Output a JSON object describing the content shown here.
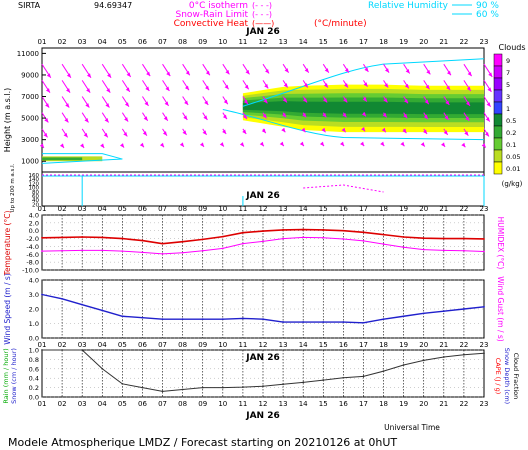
{
  "header": {
    "station": "SIRTA",
    "coord": "94.69347",
    "legend_left": [
      {
        "label": "0°C isotherm",
        "key": "(- - -)",
        "color": "#ff00ff"
      },
      {
        "label": "Snow-Rain Limit",
        "key": "(- - -)",
        "color": "#ff00ff"
      },
      {
        "label": "Convective Heat",
        "key": "(——)",
        "color": "#ff0000"
      },
      {
        "label": "(°C/minute)",
        "key": "",
        "color": "#ff0000"
      }
    ],
    "legend_right": {
      "label": "Relative Humidity",
      "v90": "90 %",
      "v60": "60 %",
      "color": "#00d8ff"
    }
  },
  "hours": [
    "01",
    "02",
    "03",
    "04",
    "05",
    "06",
    "07",
    "08",
    "09",
    "10",
    "11",
    "12",
    "13",
    "14",
    "15",
    "16",
    "17",
    "18",
    "19",
    "20",
    "21",
    "22",
    "23"
  ],
  "date_label": "JAN 26",
  "colorbar": {
    "title": "Clouds",
    "unit": "(g/kg)",
    "levels": [
      "9",
      "7",
      "5",
      "3",
      "1",
      "0.5",
      "0.2",
      "0.1",
      "0.05",
      "0.01"
    ],
    "colors": [
      "#ff00ff",
      "#cc00ff",
      "#9900ff",
      "#6633ff",
      "#3344ff",
      "#118833",
      "#33aa33",
      "#66cc33",
      "#bbdd22",
      "#ffff00"
    ]
  },
  "panel1": {
    "ylabel": "Height (m a.s.l.)",
    "yticks": [
      "11000",
      "9000",
      "7000",
      "5000",
      "3000",
      "1000"
    ],
    "lower_ylabel": "Up to 200 m a.s.l.",
    "lower_yticks": [
      "160",
      "140",
      "120",
      "100",
      "80",
      "60",
      "40",
      "20"
    ]
  },
  "panel2": {
    "ylabel_left": "Temperature (°C)",
    "ylabel_right": "HUMIDEX (°C)",
    "yticks": [
      "4.0",
      "2.0",
      "0.0",
      "-2.0",
      "-4.0",
      "-6.0",
      "-8.0",
      "-10.0"
    ],
    "color_temp": "#dd0000",
    "color_humidex": "#ff00ff"
  },
  "panel3": {
    "ylabel_left": "Wind Speed (m / s)",
    "ylabel_right": "Wind Gust (m / s)",
    "yticks": [
      "4.0",
      "3.0",
      "2.0",
      "1.0",
      "0.0"
    ],
    "color": "#2020cc"
  },
  "panel4": {
    "ylabel_left": "Rain (mm / hour)",
    "ylabel_left2": "Snow (cm / hour)",
    "ylabel_right": "CAPE (J / g)",
    "ylabel_right2": "Snow Depth (cm)",
    "ylabel_right3": "Cloud Fraction",
    "yticks": [
      "1.0",
      "0.8",
      "0.6",
      "0.4",
      "0.2",
      "0.0"
    ]
  },
  "footer": {
    "universal_time": "Universal Time",
    "caption": "Modele Atmospherique LMDZ / Forecast starting on 20210126 at 0hUT"
  },
  "chart_data": [
    {
      "type": "heatmap",
      "title": "Clouds / wind / humidity cross-section",
      "x": [
        "01",
        "02",
        "03",
        "04",
        "05",
        "06",
        "07",
        "08",
        "09",
        "10",
        "11",
        "12",
        "13",
        "14",
        "15",
        "16",
        "17",
        "18",
        "19",
        "20",
        "21",
        "22",
        "23"
      ],
      "ylabel": "Height (m a.s.l.)",
      "ylim": [
        0,
        11000
      ],
      "cloud_layer_top_m": [
        0,
        0,
        0,
        0,
        0,
        0,
        0,
        0,
        0,
        0,
        7300,
        7600,
        7900,
        8000,
        8050,
        8100,
        8100,
        8100,
        8050,
        8000,
        8000,
        8000,
        8000
      ],
      "cloud_layer_base_m": [
        0,
        0,
        0,
        0,
        0,
        0,
        0,
        0,
        0,
        0,
        4800,
        4500,
        4200,
        3900,
        3800,
        3700,
        3700,
        3700,
        3700,
        3700,
        3700,
        3700,
        3700
      ]
    },
    {
      "type": "line",
      "x": [
        "01",
        "02",
        "03",
        "04",
        "05",
        "06",
        "07",
        "08",
        "09",
        "10",
        "11",
        "12",
        "13",
        "14",
        "15",
        "16",
        "17",
        "18",
        "19",
        "20",
        "21",
        "22",
        "23"
      ],
      "ylabel": "Temperature (°C)",
      "ylim": [
        -10,
        4
      ],
      "series": [
        {
          "name": "Temperature",
          "values": [
            -1.8,
            -1.7,
            -1.6,
            -1.7,
            -2.0,
            -2.5,
            -3.3,
            -2.8,
            -2.2,
            -1.5,
            -0.5,
            -0.1,
            0.2,
            0.3,
            0.2,
            0.0,
            -0.4,
            -1.0,
            -1.6,
            -1.9,
            -2.0,
            -2.0,
            -2.1
          ]
        },
        {
          "name": "HUMIDEX",
          "values": [
            -5.2,
            -5.1,
            -5.0,
            -5.0,
            -5.2,
            -5.5,
            -5.9,
            -5.6,
            -5.1,
            -4.5,
            -3.3,
            -2.7,
            -2.0,
            -1.7,
            -1.8,
            -2.1,
            -2.6,
            -3.4,
            -4.2,
            -4.8,
            -5.0,
            -5.1,
            -5.3
          ]
        }
      ]
    },
    {
      "type": "line",
      "x": [
        "01",
        "02",
        "03",
        "04",
        "05",
        "06",
        "07",
        "08",
        "09",
        "10",
        "11",
        "12",
        "13",
        "14",
        "15",
        "16",
        "17",
        "18",
        "19",
        "20",
        "21",
        "22",
        "23"
      ],
      "ylabel": "Wind Speed (m / s)",
      "ylim": [
        0,
        4
      ],
      "series": [
        {
          "name": "Wind Speed",
          "values": [
            3.0,
            2.7,
            2.3,
            1.9,
            1.5,
            1.4,
            1.3,
            1.3,
            1.3,
            1.3,
            1.35,
            1.3,
            1.1,
            1.1,
            1.1,
            1.1,
            1.05,
            1.3,
            1.5,
            1.7,
            1.85,
            2.0,
            2.15
          ]
        }
      ]
    },
    {
      "type": "line",
      "x": [
        "01",
        "02",
        "03",
        "04",
        "05",
        "06",
        "07",
        "08",
        "09",
        "10",
        "11",
        "12",
        "13",
        "14",
        "15",
        "16",
        "17",
        "18",
        "19",
        "20",
        "21",
        "22",
        "23"
      ],
      "ylabel": "Cloud Fraction",
      "ylim": [
        0,
        1
      ],
      "series": [
        {
          "name": "Cloud Fraction",
          "values": [
            1.0,
            1.0,
            1.0,
            0.6,
            0.28,
            0.2,
            0.12,
            0.16,
            0.2,
            0.2,
            0.21,
            0.23,
            0.27,
            0.31,
            0.36,
            0.41,
            0.44,
            0.55,
            0.68,
            0.78,
            0.85,
            0.9,
            0.93
          ]
        }
      ]
    }
  ]
}
